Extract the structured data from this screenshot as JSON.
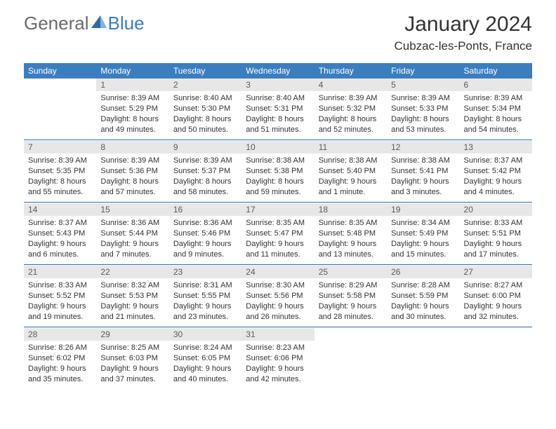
{
  "brand": {
    "general": "General",
    "blue": "Blue"
  },
  "title": "January 2024",
  "location": "Cubzac-les-Ponts, France",
  "colors": {
    "header_bg": "#3b7ec0",
    "header_text": "#ffffff",
    "daybar_bg": "#e7e7e7",
    "daybar_text": "#5a5a5a",
    "body_text": "#333333",
    "separator": "#2f6aa8",
    "logo_gray": "#6b6b6b",
    "logo_blue": "#3b7ec0"
  },
  "week_days": [
    "Sunday",
    "Monday",
    "Tuesday",
    "Wednesday",
    "Thursday",
    "Friday",
    "Saturday"
  ],
  "layout": {
    "first_weekday_index": 1,
    "total_days": 31
  },
  "days": {
    "1": {
      "sunrise": "8:39 AM",
      "sunset": "5:29 PM",
      "daylight": "8 hours and 49 minutes."
    },
    "2": {
      "sunrise": "8:40 AM",
      "sunset": "5:30 PM",
      "daylight": "8 hours and 50 minutes."
    },
    "3": {
      "sunrise": "8:40 AM",
      "sunset": "5:31 PM",
      "daylight": "8 hours and 51 minutes."
    },
    "4": {
      "sunrise": "8:39 AM",
      "sunset": "5:32 PM",
      "daylight": "8 hours and 52 minutes."
    },
    "5": {
      "sunrise": "8:39 AM",
      "sunset": "5:33 PM",
      "daylight": "8 hours and 53 minutes."
    },
    "6": {
      "sunrise": "8:39 AM",
      "sunset": "5:34 PM",
      "daylight": "8 hours and 54 minutes."
    },
    "7": {
      "sunrise": "8:39 AM",
      "sunset": "5:35 PM",
      "daylight": "8 hours and 55 minutes."
    },
    "8": {
      "sunrise": "8:39 AM",
      "sunset": "5:36 PM",
      "daylight": "8 hours and 57 minutes."
    },
    "9": {
      "sunrise": "8:39 AM",
      "sunset": "5:37 PM",
      "daylight": "8 hours and 58 minutes."
    },
    "10": {
      "sunrise": "8:38 AM",
      "sunset": "5:38 PM",
      "daylight": "8 hours and 59 minutes."
    },
    "11": {
      "sunrise": "8:38 AM",
      "sunset": "5:40 PM",
      "daylight": "9 hours and 1 minute."
    },
    "12": {
      "sunrise": "8:38 AM",
      "sunset": "5:41 PM",
      "daylight": "9 hours and 3 minutes."
    },
    "13": {
      "sunrise": "8:37 AM",
      "sunset": "5:42 PM",
      "daylight": "9 hours and 4 minutes."
    },
    "14": {
      "sunrise": "8:37 AM",
      "sunset": "5:43 PM",
      "daylight": "9 hours and 6 minutes."
    },
    "15": {
      "sunrise": "8:36 AM",
      "sunset": "5:44 PM",
      "daylight": "9 hours and 7 minutes."
    },
    "16": {
      "sunrise": "8:36 AM",
      "sunset": "5:46 PM",
      "daylight": "9 hours and 9 minutes."
    },
    "17": {
      "sunrise": "8:35 AM",
      "sunset": "5:47 PM",
      "daylight": "9 hours and 11 minutes."
    },
    "18": {
      "sunrise": "8:35 AM",
      "sunset": "5:48 PM",
      "daylight": "9 hours and 13 minutes."
    },
    "19": {
      "sunrise": "8:34 AM",
      "sunset": "5:49 PM",
      "daylight": "9 hours and 15 minutes."
    },
    "20": {
      "sunrise": "8:33 AM",
      "sunset": "5:51 PM",
      "daylight": "9 hours and 17 minutes."
    },
    "21": {
      "sunrise": "8:33 AM",
      "sunset": "5:52 PM",
      "daylight": "9 hours and 19 minutes."
    },
    "22": {
      "sunrise": "8:32 AM",
      "sunset": "5:53 PM",
      "daylight": "9 hours and 21 minutes."
    },
    "23": {
      "sunrise": "8:31 AM",
      "sunset": "5:55 PM",
      "daylight": "9 hours and 23 minutes."
    },
    "24": {
      "sunrise": "8:30 AM",
      "sunset": "5:56 PM",
      "daylight": "9 hours and 26 minutes."
    },
    "25": {
      "sunrise": "8:29 AM",
      "sunset": "5:58 PM",
      "daylight": "9 hours and 28 minutes."
    },
    "26": {
      "sunrise": "8:28 AM",
      "sunset": "5:59 PM",
      "daylight": "9 hours and 30 minutes."
    },
    "27": {
      "sunrise": "8:27 AM",
      "sunset": "6:00 PM",
      "daylight": "9 hours and 32 minutes."
    },
    "28": {
      "sunrise": "8:26 AM",
      "sunset": "6:02 PM",
      "daylight": "9 hours and 35 minutes."
    },
    "29": {
      "sunrise": "8:25 AM",
      "sunset": "6:03 PM",
      "daylight": "9 hours and 37 minutes."
    },
    "30": {
      "sunrise": "8:24 AM",
      "sunset": "6:05 PM",
      "daylight": "9 hours and 40 minutes."
    },
    "31": {
      "sunrise": "8:23 AM",
      "sunset": "6:06 PM",
      "daylight": "9 hours and 42 minutes."
    }
  },
  "labels": {
    "sunrise": "Sunrise:",
    "sunset": "Sunset:",
    "daylight": "Daylight:"
  }
}
